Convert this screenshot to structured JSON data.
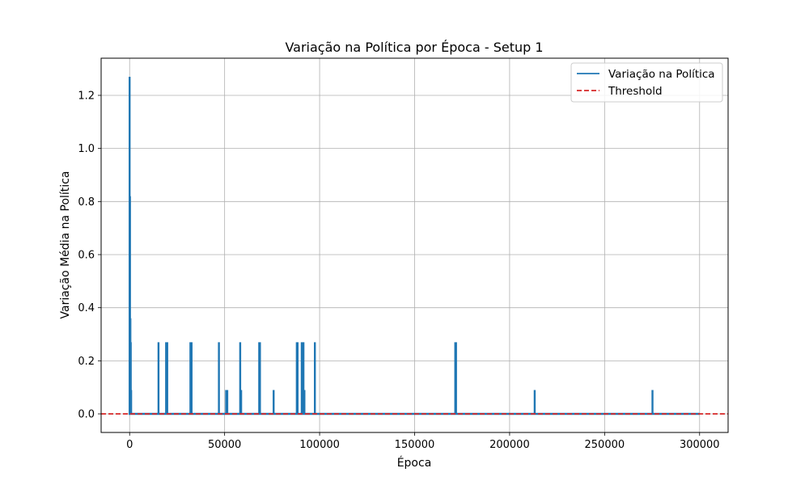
{
  "chart_data": {
    "type": "line",
    "title": "Variação na Política por Época - Setup 1",
    "xlabel": "Época",
    "ylabel": "Variação Média na Política",
    "xlim": [
      -15000,
      315000
    ],
    "ylim": [
      -0.07,
      1.34
    ],
    "x_ticks": [
      0,
      50000,
      100000,
      150000,
      200000,
      250000,
      300000
    ],
    "y_ticks": [
      0.0,
      0.2,
      0.4,
      0.6,
      0.8,
      1.0,
      1.2
    ],
    "x_tick_labels": [
      "0",
      "50000",
      "100000",
      "150000",
      "200000",
      "250000",
      "300000"
    ],
    "y_tick_labels": [
      "0.0",
      "0.2",
      "0.4",
      "0.6",
      "0.8",
      "1.0",
      "1.2"
    ],
    "grid": true,
    "legend_position": "top-right",
    "series": [
      {
        "name": "Variação na Política",
        "color": "#1f77b4",
        "style": "solid",
        "x_range": [
          0,
          300000
        ],
        "baseline": 0,
        "points": [
          [
            0,
            1.27
          ],
          [
            200,
            0.82
          ],
          [
            400,
            0.36
          ],
          [
            600,
            0.27
          ],
          [
            800,
            0.09
          ],
          [
            15200,
            0.27
          ],
          [
            19200,
            0.27
          ],
          [
            19800,
            0.27
          ],
          [
            32000,
            0.27
          ],
          [
            32600,
            0.27
          ],
          [
            47000,
            0.27
          ],
          [
            50800,
            0.09
          ],
          [
            51400,
            0.09
          ],
          [
            58200,
            0.27
          ],
          [
            58700,
            0.09
          ],
          [
            68200,
            0.27
          ],
          [
            68600,
            0.27
          ],
          [
            75800,
            0.09
          ],
          [
            88000,
            0.27
          ],
          [
            88400,
            0.27
          ],
          [
            90600,
            0.27
          ],
          [
            91500,
            0.27
          ],
          [
            92000,
            0.09
          ],
          [
            97500,
            0.27
          ],
          [
            171400,
            0.27
          ],
          [
            171800,
            0.27
          ],
          [
            213200,
            0.09
          ],
          [
            275200,
            0.09
          ]
        ]
      },
      {
        "name": "Threshold",
        "color": "#d62728",
        "style": "dashed",
        "y": 0
      }
    ]
  }
}
